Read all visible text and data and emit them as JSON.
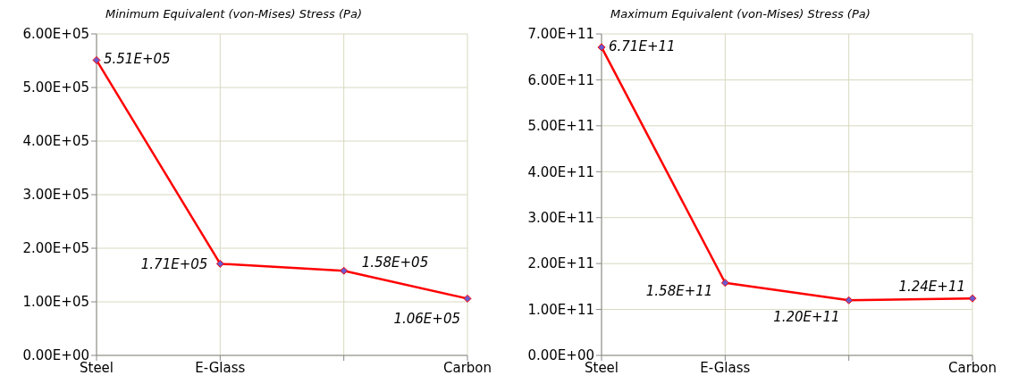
{
  "chart_data": [
    {
      "type": "line",
      "title": "Minimum  Equivalent (von-Mises) Stress (Pa)",
      "categories": [
        "Steel",
        "E-Glass",
        null,
        "Carbon"
      ],
      "series": [
        {
          "color": "#ff0000",
          "values": [
            551000,
            171000,
            158000,
            106000
          ],
          "value_labels": [
            "5.51E+05",
            "1.71E+05",
            "1.58E+05",
            "1.06E+05"
          ]
        }
      ],
      "ylim": [
        0,
        600000
      ],
      "yticks": [
        {
          "value": 0,
          "label": "0.00E+00"
        },
        {
          "value": 100000,
          "label": "1.00E+05"
        },
        {
          "value": 200000,
          "label": "2.00E+05"
        },
        {
          "value": 300000,
          "label": "3.00E+05"
        },
        {
          "value": 400000,
          "label": "4.00E+05"
        },
        {
          "value": 500000,
          "label": "5.00E+05"
        },
        {
          "value": 600000,
          "label": "6.00E+05"
        }
      ],
      "grid": true,
      "marker": "diamond",
      "legend": false
    },
    {
      "type": "line",
      "title": "Maximum  Equivalent (von-Mises) Stress (Pa)",
      "categories": [
        "Steel",
        "E-Glass",
        null,
        "Carbon"
      ],
      "series": [
        {
          "color": "#ff0000",
          "values": [
            671000000000,
            158000000000,
            120000000000,
            124000000000
          ],
          "value_labels": [
            "6.71E+11",
            "1.58E+11",
            "1.20E+11",
            "1.24E+11"
          ]
        }
      ],
      "ylim": [
        0,
        700000000000
      ],
      "yticks": [
        {
          "value": 0,
          "label": "0.00E+00"
        },
        {
          "value": 100000000000,
          "label": "1.00E+11"
        },
        {
          "value": 200000000000,
          "label": "2.00E+11"
        },
        {
          "value": 300000000000,
          "label": "3.00E+11"
        },
        {
          "value": 400000000000,
          "label": "4.00E+11"
        },
        {
          "value": 500000000000,
          "label": "5.00E+11"
        },
        {
          "value": 600000000000,
          "label": "6.00E+11"
        },
        {
          "value": 700000000000,
          "label": "7.00E+11"
        }
      ],
      "grid": true,
      "marker": "diamond",
      "legend": false
    }
  ]
}
